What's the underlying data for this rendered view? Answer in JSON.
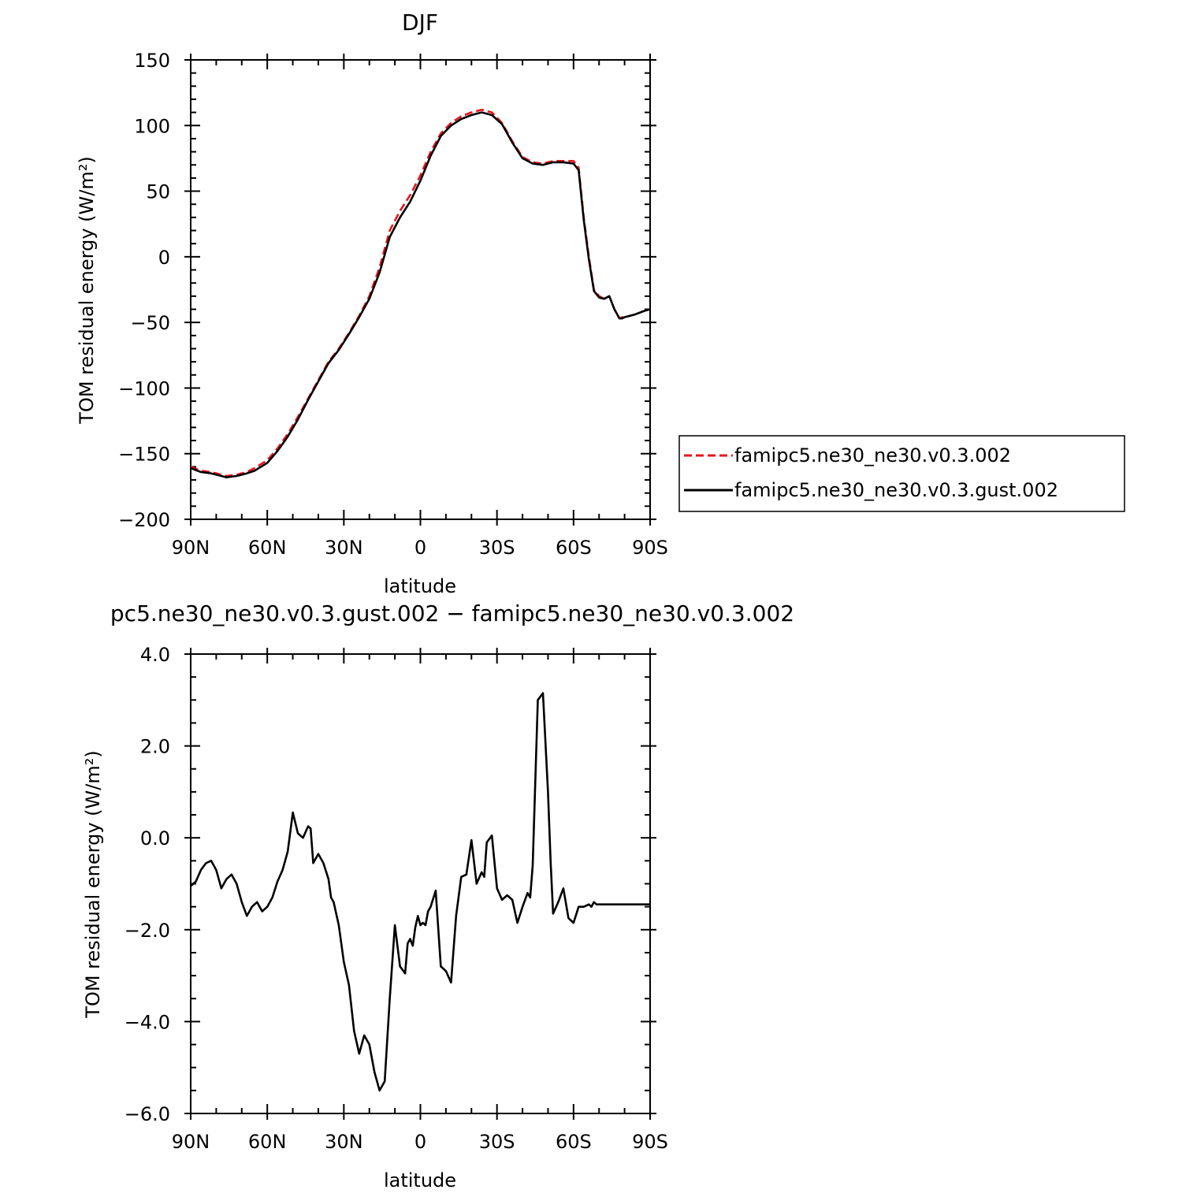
{
  "colors": {
    "dashed_series": "#e8141b",
    "solid_series": "#000000",
    "axes": "#000000"
  },
  "chart_data": [
    {
      "type": "line",
      "title": "DJF",
      "xlabel": "latitude",
      "ylabel": "TOM residual energy (W/m²)",
      "xlim": [
        -90,
        90
      ],
      "ylim": [
        -200,
        150
      ],
      "xticks": [
        -90,
        -60,
        -30,
        0,
        30,
        60,
        90
      ],
      "xtick_labels": [
        "90N",
        "60N",
        "30N",
        "0",
        "30S",
        "60S",
        "90S"
      ],
      "yticks": [
        -200,
        -150,
        -100,
        -50,
        0,
        50,
        100,
        150
      ],
      "ytick_labels": [
        "−200",
        "−150",
        "−100",
        "−50",
        "0",
        "50",
        "100",
        "150"
      ],
      "legend": "outside-right",
      "series": [
        {
          "name": "famipc5.ne30_ne30.v0.3.002",
          "style": "dashed",
          "color": "#e8141b",
          "x": [
            -90,
            -86,
            -82,
            -78,
            -76,
            -72,
            -68,
            -65,
            -60,
            -56,
            -52,
            -48,
            -44,
            -40,
            -36,
            -32,
            -28,
            -24,
            -20,
            -16,
            -12,
            -8,
            -4,
            0,
            4,
            8,
            12,
            16,
            20,
            24,
            28,
            32,
            36,
            40,
            44,
            48,
            52,
            56,
            60,
            62,
            64,
            66,
            68,
            70,
            72,
            74,
            76,
            78,
            79,
            80,
            84,
            88,
            90
          ],
          "y": [
            -160,
            -163,
            -164,
            -166,
            -167,
            -166,
            -164,
            -161,
            -155,
            -146,
            -135,
            -122,
            -108,
            -94,
            -80,
            -70,
            -58,
            -45,
            -30,
            -8,
            20,
            35,
            47,
            62,
            80,
            94,
            102,
            107,
            110,
            112,
            110,
            102,
            88,
            76,
            72,
            71,
            73,
            73,
            73,
            68,
            30,
            0,
            -25,
            -30,
            -32,
            -30,
            -40,
            -47,
            -46,
            -46,
            -44,
            -41,
            -40
          ]
        },
        {
          "name": "famipc5.ne30_ne30.v0.3.gust.002",
          "style": "solid",
          "color": "#000000",
          "x": [
            -90,
            -86,
            -82,
            -78,
            -76,
            -72,
            -68,
            -65,
            -60,
            -56,
            -52,
            -48,
            -44,
            -40,
            -36,
            -32,
            -28,
            -24,
            -20,
            -16,
            -12,
            -8,
            -4,
            0,
            4,
            8,
            12,
            16,
            20,
            24,
            28,
            32,
            36,
            40,
            44,
            48,
            52,
            56,
            60,
            62,
            64,
            66,
            68,
            70,
            72,
            74,
            76,
            78,
            79,
            80,
            84,
            88,
            90
          ],
          "y": [
            -161,
            -164,
            -165,
            -167,
            -168,
            -167,
            -165,
            -163,
            -157,
            -148,
            -137,
            -124,
            -109,
            -95,
            -81,
            -71,
            -59,
            -46,
            -32,
            -12,
            15,
            30,
            42,
            58,
            77,
            92,
            100,
            105,
            108,
            110,
            108,
            101,
            87,
            75,
            71,
            70,
            72,
            72,
            71,
            66,
            28,
            -2,
            -26,
            -31,
            -32,
            -30,
            -40,
            -47,
            -47,
            -46,
            -44,
            -41,
            -40
          ]
        }
      ]
    },
    {
      "type": "line",
      "title": "pc5.ne30_ne30.v0.3.gust.002 − famipc5.ne30_ne30.v0.3.002",
      "xlabel": "latitude",
      "ylabel": "TOM residual energy (W/m²)",
      "xlim": [
        -90,
        90
      ],
      "ylim": [
        -6,
        4
      ],
      "xticks": [
        -90,
        -60,
        -30,
        0,
        30,
        60,
        90
      ],
      "xtick_labels": [
        "90N",
        "60N",
        "30N",
        "0",
        "30S",
        "60S",
        "90S"
      ],
      "yticks": [
        -6,
        -4,
        -2,
        0,
        2,
        4
      ],
      "ytick_labels": [
        "−6.0",
        "−4.0",
        "−2.0",
        "0.0",
        "2.0",
        "4.0"
      ],
      "series": [
        {
          "style": "solid",
          "color": "#000000",
          "x": [
            -90,
            -88,
            -86,
            -84,
            -82,
            -80,
            -78,
            -76,
            -74,
            -72,
            -70,
            -68,
            -66,
            -64,
            -62,
            -60,
            -58,
            -56,
            -54,
            -52,
            -50,
            -48,
            -46,
            -44,
            -43,
            -42,
            -40,
            -38,
            -36,
            -35,
            -34,
            -32,
            -30,
            -28,
            -26,
            -24,
            -22,
            -20,
            -18,
            -16,
            -14,
            -12,
            -10,
            -8,
            -6,
            -5,
            -4,
            -3,
            -2,
            -1,
            0,
            1,
            2,
            3,
            4,
            6,
            8,
            10,
            12,
            14,
            16,
            18,
            20,
            22,
            24,
            25,
            26,
            28,
            30,
            32,
            34,
            36,
            38,
            40,
            42,
            43,
            44,
            46,
            48,
            50,
            51,
            52,
            54,
            56,
            58,
            60,
            62,
            64,
            66,
            67,
            68,
            69,
            70,
            71,
            72,
            73,
            74,
            76,
            78,
            80,
            82,
            84,
            85,
            86,
            88,
            90
          ],
          "y": [
            -1.05,
            -0.95,
            -0.7,
            -0.55,
            -0.5,
            -0.7,
            -1.1,
            -0.9,
            -0.8,
            -1.0,
            -1.4,
            -1.7,
            -1.5,
            -1.4,
            -1.6,
            -1.5,
            -1.3,
            -0.95,
            -0.7,
            -0.3,
            0.55,
            0.1,
            0.0,
            0.25,
            0.2,
            -0.55,
            -0.35,
            -0.55,
            -0.9,
            -1.3,
            -1.4,
            -1.9,
            -2.7,
            -3.2,
            -4.2,
            -4.7,
            -4.3,
            -4.5,
            -5.1,
            -5.5,
            -5.3,
            -3.5,
            -1.9,
            -2.8,
            -2.95,
            -2.3,
            -2.2,
            -2.35,
            -1.95,
            -1.7,
            -1.9,
            -1.85,
            -1.9,
            -1.6,
            -1.5,
            -1.15,
            -2.8,
            -2.9,
            -3.15,
            -1.7,
            -0.85,
            -0.8,
            -0.05,
            -1.0,
            -0.75,
            -0.85,
            -0.1,
            0.05,
            -1.1,
            -1.35,
            -1.25,
            -1.35,
            -1.85,
            -1.5,
            -1.2,
            -1.3,
            -0.6,
            3.0,
            3.15,
            1.0,
            -0.5,
            -1.65,
            -1.4,
            -1.1,
            -1.75,
            -1.85,
            -1.5,
            -1.5,
            -1.45,
            -1.5,
            -1.4,
            -1.45,
            -1.45,
            -1.45,
            -1.45,
            -1.45,
            -1.45,
            -1.45,
            -1.45,
            -1.45,
            -1.45,
            -1.45,
            -1.45,
            -1.45,
            -1.45,
            -1.45
          ]
        }
      ]
    }
  ]
}
